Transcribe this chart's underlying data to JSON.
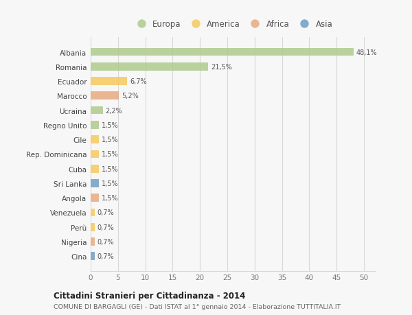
{
  "categories": [
    "Albania",
    "Romania",
    "Ecuador",
    "Marocco",
    "Ucraina",
    "Regno Unito",
    "Cile",
    "Rep. Dominicana",
    "Cuba",
    "Sri Lanka",
    "Angola",
    "Venezuela",
    "Perù",
    "Nigeria",
    "Cina"
  ],
  "values": [
    48.1,
    21.5,
    6.7,
    5.2,
    2.2,
    1.5,
    1.5,
    1.5,
    1.5,
    1.5,
    1.5,
    0.7,
    0.7,
    0.7,
    0.7
  ],
  "labels": [
    "48,1%",
    "21,5%",
    "6,7%",
    "5,2%",
    "2,2%",
    "1,5%",
    "1,5%",
    "1,5%",
    "1,5%",
    "1,5%",
    "1,5%",
    "0,7%",
    "0,7%",
    "0,7%",
    "0,7%"
  ],
  "colors": [
    "#aec98a",
    "#aec98a",
    "#f5c857",
    "#e8a87c",
    "#aec98a",
    "#aec98a",
    "#f5c857",
    "#f5c857",
    "#f5c857",
    "#6b9bc3",
    "#e8a87c",
    "#f5c857",
    "#f5c857",
    "#e8a87c",
    "#6b9bc3"
  ],
  "legend_labels": [
    "Europa",
    "America",
    "Africa",
    "Asia"
  ],
  "legend_colors": [
    "#aec98a",
    "#f5c857",
    "#e8a87c",
    "#6b9bc3"
  ],
  "xlim": [
    0,
    52
  ],
  "xticks": [
    0,
    5,
    10,
    15,
    20,
    25,
    30,
    35,
    40,
    45,
    50
  ],
  "title": "Cittadini Stranieri per Cittadinanza - 2014",
  "subtitle": "COMUNE DI BARGAGLI (GE) - Dati ISTAT al 1° gennaio 2014 - Elaborazione TUTTITALIA.IT",
  "bg_color": "#f7f7f7",
  "grid_color": "#d8d8d8",
  "bar_height": 0.55,
  "bar_alpha": 0.82
}
